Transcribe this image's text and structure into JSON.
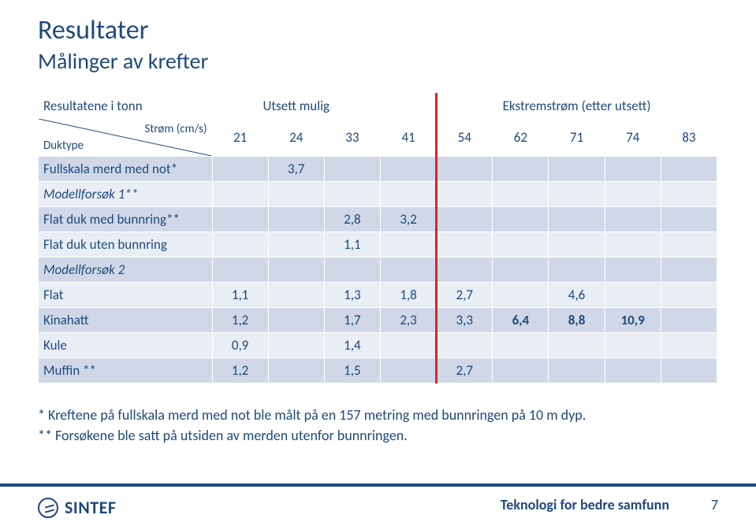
{
  "colors": {
    "brand": "#1f497d",
    "band1": "#d0d8e8",
    "band2": "#e9edf4",
    "redline": "#d02828",
    "border": "#ffffff",
    "bg": "#ffffff"
  },
  "title": "Resultater",
  "subtitle": "Målinger av krefter",
  "table": {
    "corner_top_right": "Strøm (cm/s)",
    "corner_bottom_left": "Duktype",
    "header_left": "Resultatene i tonn",
    "header_group_1": "Utsett mulig",
    "header_group_2": "Ekstremstrøm (etter utsett)",
    "col_numbers": [
      "21",
      "24",
      "33",
      "41",
      "54",
      "62",
      "71",
      "74",
      "83"
    ],
    "rows": [
      {
        "label": "Fullskala merd med not*",
        "band": 1,
        "italic": false,
        "vals": [
          "",
          "3,7",
          "",
          "",
          "",
          "",
          "",
          "",
          ""
        ]
      },
      {
        "label": "Modellforsøk 1**",
        "band": 2,
        "italic": true,
        "vals": [
          "",
          "",
          "",
          "",
          "",
          "",
          "",
          "",
          ""
        ]
      },
      {
        "label": "Flat duk med bunnring**",
        "band": 1,
        "italic": false,
        "vals": [
          "",
          "",
          "2,8",
          "3,2",
          "",
          "",
          "",
          "",
          ""
        ]
      },
      {
        "label": "Flat duk uten bunnring",
        "band": 2,
        "italic": false,
        "vals": [
          "",
          "",
          "1,1",
          "",
          "",
          "",
          "",
          "",
          ""
        ]
      },
      {
        "label": "Modellforsøk 2",
        "band": 1,
        "italic": true,
        "vals": [
          "",
          "",
          "",
          "",
          "",
          "",
          "",
          "",
          ""
        ]
      },
      {
        "label": "Flat",
        "band": 2,
        "italic": false,
        "vals": [
          "1,1",
          "",
          "1,3",
          "1,8",
          "2,7",
          "",
          "4,6",
          "",
          ""
        ]
      },
      {
        "label": "Kinahatt",
        "band": 1,
        "italic": false,
        "vals": [
          "1,2",
          "",
          "1,7",
          "2,3",
          "3,3",
          "6,4",
          "8,8",
          "10,9",
          ""
        ],
        "bold_cols": [
          5,
          6,
          7
        ]
      },
      {
        "label": "Kule",
        "band": 2,
        "italic": false,
        "vals": [
          "0,9",
          "",
          "1,4",
          "",
          "",
          "",
          "",
          "",
          ""
        ]
      },
      {
        "label": "Muffin **",
        "band": 1,
        "italic": false,
        "vals": [
          "1,2",
          "",
          "1,5",
          "",
          "2,7",
          "",
          "",
          "",
          ""
        ]
      }
    ],
    "redline_after_col_index": 4
  },
  "footnote1": "* Kreftene på fullskala merd med not ble målt på en 157 metring med bunnringen på 10 m dyp.",
  "footnote2": "** Forsøkene ble satt på utsiden av merden utenfor bunnringen.",
  "logo_text": "SINTEF",
  "tagline": "Teknologi for bedre samfunn",
  "page_number": "7"
}
